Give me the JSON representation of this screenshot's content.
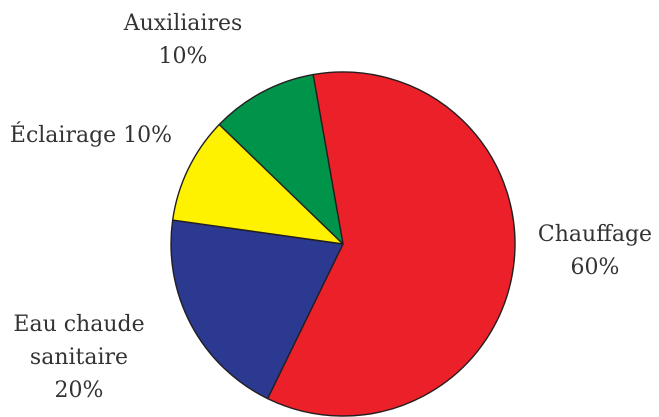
{
  "chart_data": {
    "type": "pie",
    "slices": [
      {
        "label_lines": [
          "Chauffage",
          "60%"
        ],
        "value": 60,
        "color": "#ec2028"
      },
      {
        "label_lines": [
          "Eau chaude",
          "sanitaire",
          "20%"
        ],
        "value": 20,
        "color": "#2b3990"
      },
      {
        "label_lines": [
          "Éclairage 10%"
        ],
        "value": 10,
        "color": "#fff200"
      },
      {
        "label_lines": [
          "Auxiliaires",
          "10%"
        ],
        "value": 10,
        "color": "#00944a"
      }
    ],
    "outline_color": "#231f20"
  }
}
